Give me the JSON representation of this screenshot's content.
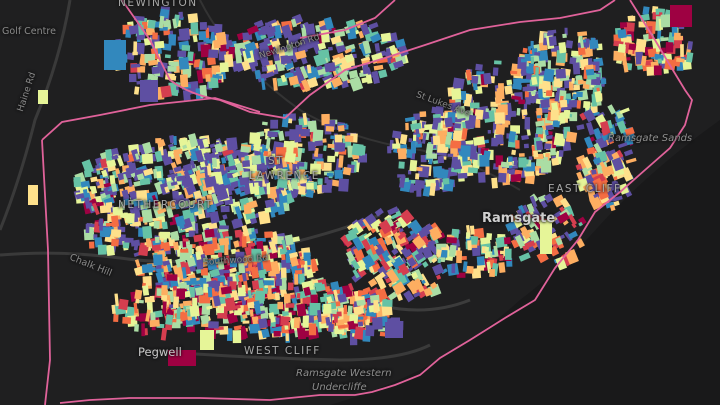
{
  "labels": {
    "newington": "NEWINGTON",
    "golf_centre": "Golf Centre",
    "haine_rd": "Haine Rd",
    "st_lawrence_1": "ST",
    "st_lawrence_2": "LAWRENCE",
    "nethercourt": "NETHERCOURT",
    "chalk_hill": "Chalk Hill",
    "pegwell": "Pegwell",
    "west_cliff": "WEST CLIFF",
    "undercliffe_1": "Ramsgate Western",
    "undercliffe_2": "Undercliffe",
    "ramsgate": "Ramsgate",
    "east_cliff": "EAST CLIFF",
    "ramsgate_sands": "Ramsgate Sands",
    "newington_rd": "Newington Rd",
    "st_lukes_ave": "St Lukes Ave",
    "southwood_rd": "Southwood Rd"
  },
  "colors": {
    "background": "#1e1e1f",
    "boundary": "#e0629a",
    "ramp": [
      "#5e4fa2",
      "#3288bd",
      "#66c2a5",
      "#abdda4",
      "#e6f598",
      "#fee08b",
      "#fdae61",
      "#f46d43",
      "#d53e4f",
      "#9e0142"
    ]
  }
}
